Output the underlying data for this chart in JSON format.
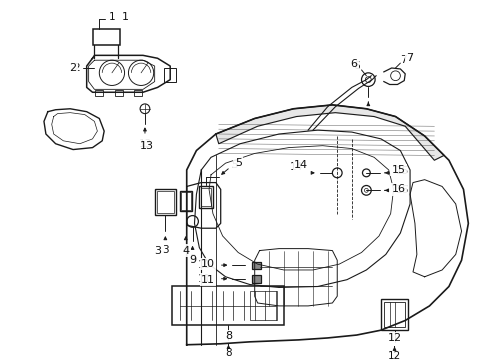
{
  "background_color": "#ffffff",
  "line_color": "#1a1a1a",
  "label_color": "#111111",
  "figsize": [
    4.89,
    3.6
  ],
  "dpi": 100
}
